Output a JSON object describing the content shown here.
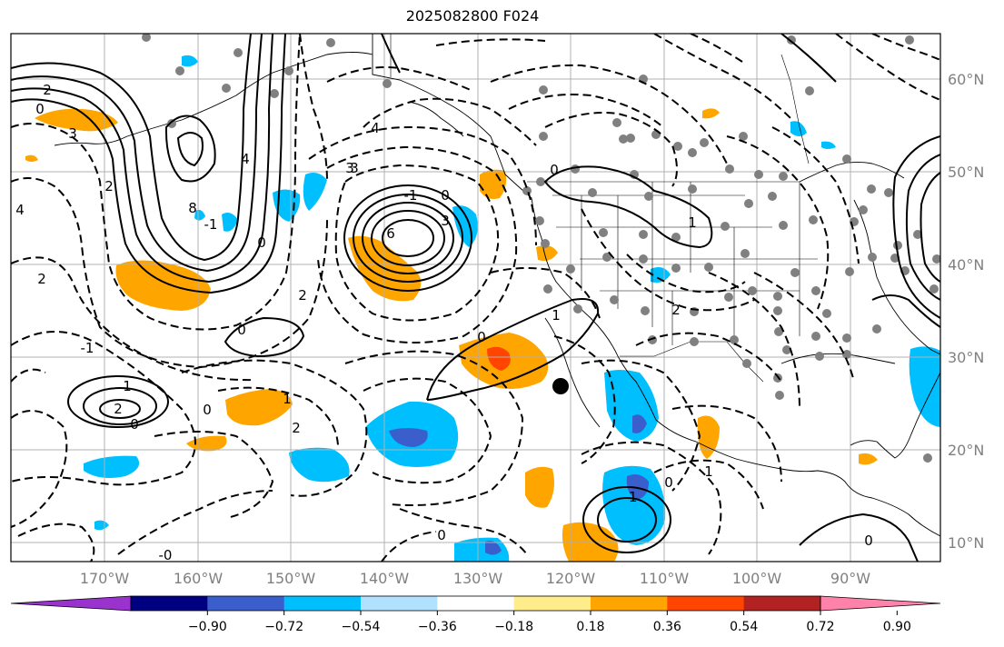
{
  "title": "2025082800 F024",
  "lat_labels": [
    "60°N",
    "50°N",
    "40°N",
    "30°N",
    "20°N",
    "10°N"
  ],
  "lon_labels": [
    "170°W",
    "160°W",
    "150°W",
    "140°W",
    "130°W",
    "120°W",
    "110°W",
    "100°W",
    "90°W"
  ],
  "colorbar": {
    "tick_labels": [
      "−0.90",
      "−0.72",
      "−0.54",
      "−0.36",
      "−0.18",
      "0.18",
      "0.36",
      "0.54",
      "0.72",
      "0.90"
    ],
    "colors": [
      "#9a32cd",
      "#000080",
      "#3a5fcd",
      "#00bfff",
      "#b0e2ff",
      "#ffffff",
      "#ffec8b",
      "#ffa500",
      "#ff4500",
      "#b22222",
      "#ff82ab"
    ]
  },
  "contour_labels": [
    "0",
    "3",
    "2",
    "4",
    "8",
    "2",
    "3",
    "-1",
    "0",
    "3",
    "6",
    "4",
    "2",
    "0",
    "-1",
    "0",
    "1",
    "2",
    "0",
    "1",
    "2",
    "0",
    "-1",
    "0",
    "1",
    "-1",
    "2",
    "0",
    "-0",
    "3",
    "2",
    "4",
    "0",
    "1",
    "0",
    "0",
    "1"
  ],
  "icons": {
    "storm_marker": "filled-circle-icon",
    "station_marker": "gray-dot-icon"
  }
}
